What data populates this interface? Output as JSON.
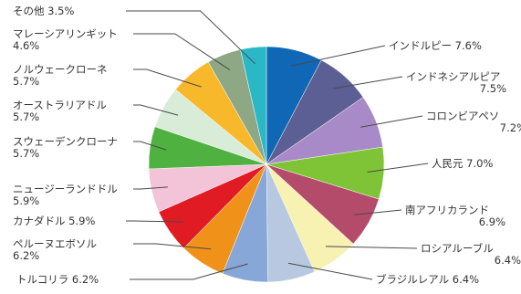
{
  "chart_data": {
    "type": "pie",
    "title": "",
    "slices": [
      {
        "label": "インドルピー",
        "value": 7.6,
        "color": "#0f67b6"
      },
      {
        "label": "インドネシアルピア",
        "value": 7.5,
        "color": "#5b5f93"
      },
      {
        "label": "コロンビアペソ",
        "value": 7.2,
        "color": "#a88ac9"
      },
      {
        "label": "人民元",
        "value": 7.0,
        "color": "#7fc437"
      },
      {
        "label": "南アフリカランド",
        "value": 6.9,
        "color": "#b54b6b"
      },
      {
        "label": "ロシアルーブル",
        "value": 6.4,
        "color": "#f7f1b2"
      },
      {
        "label": "ブラジルレアル",
        "value": 6.4,
        "color": "#b7c8e0"
      },
      {
        "label": "トルコリラ",
        "value": 6.2,
        "color": "#86a7d8"
      },
      {
        "label": "ペルーヌエボソル",
        "value": 6.2,
        "color": "#f0921a"
      },
      {
        "label": "カナダドル",
        "value": 5.9,
        "color": "#e01b24"
      },
      {
        "label": "ニュージーランドドル",
        "value": 5.9,
        "color": "#f3c3d7"
      },
      {
        "label": "スウェーデンクローナ",
        "value": 5.7,
        "color": "#4fb140"
      },
      {
        "label": "オーストラリアドル",
        "value": 5.7,
        "color": "#d9ecd8"
      },
      {
        "label": "ノルウェークローネ",
        "value": 5.7,
        "color": "#f8b82c"
      },
      {
        "label": "マレーシアリンギット",
        "value": 4.6,
        "color": "#8ea886"
      },
      {
        "label": "その他",
        "value": 3.5,
        "color": "#2bb8c6"
      }
    ]
  }
}
